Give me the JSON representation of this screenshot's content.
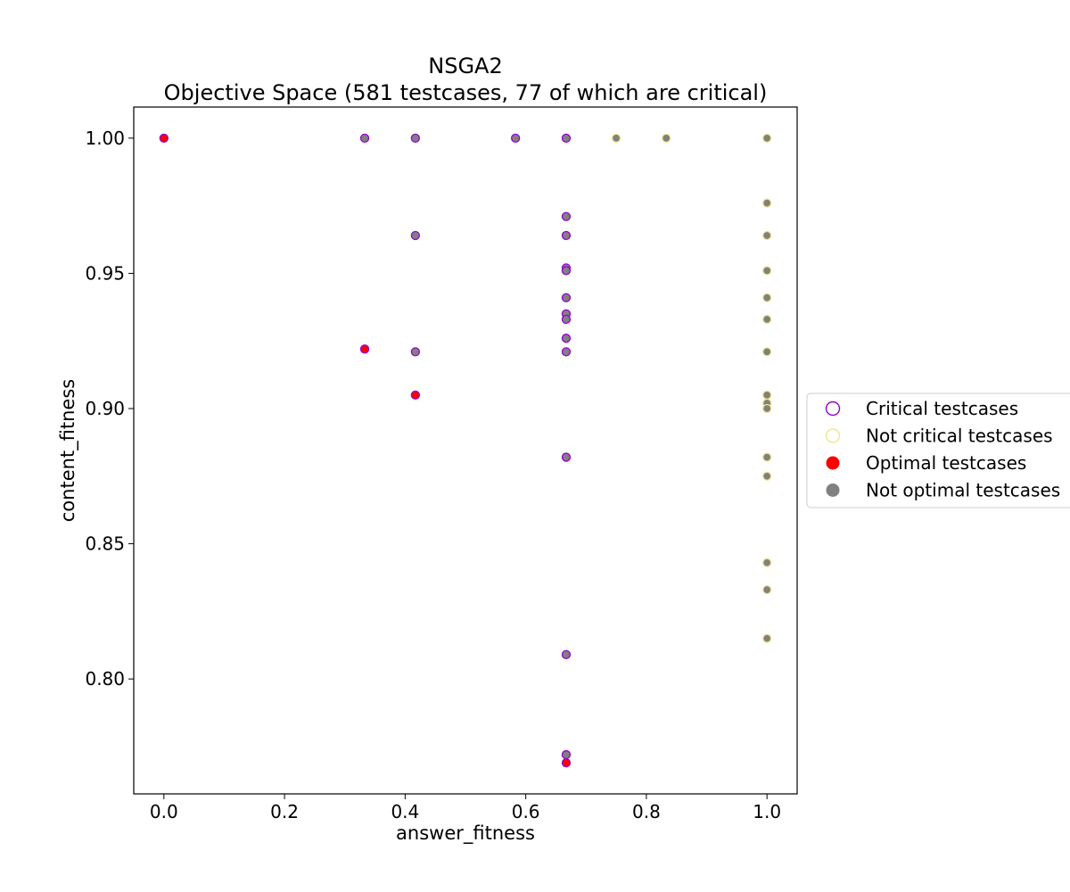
{
  "chart_data": {
    "type": "scatter",
    "title": "NSGA2",
    "subtitle": "Objective Space (581 testcases, 77 of which are critical)",
    "xlabel": "answer_fitness",
    "ylabel": "content_fitness",
    "xlim": [
      -0.05,
      1.05
    ],
    "ylim": [
      0.7575,
      1.0115
    ],
    "xticks": [
      0.0,
      0.2,
      0.4,
      0.6,
      0.8,
      1.0
    ],
    "xtick_labels": [
      "0.0",
      "0.2",
      "0.4",
      "0.6",
      "0.8",
      "1.0"
    ],
    "yticks": [
      0.8,
      0.85,
      0.9,
      0.95,
      1.0
    ],
    "ytick_labels": [
      "0.80",
      "0.85",
      "0.90",
      "0.95",
      "1.00"
    ],
    "grid": false,
    "legend_position": "right",
    "legend": [
      {
        "label": "Critical testcases",
        "marker": "hollow",
        "color": "#9400d3"
      },
      {
        "label": "Not critical testcases",
        "marker": "hollow",
        "color": "#f0e68c"
      },
      {
        "label": "Optimal testcases",
        "marker": "filled",
        "color": "#ff0000"
      },
      {
        "label": "Not optimal testcases",
        "marker": "filled",
        "color": "#808080"
      }
    ],
    "colors": {
      "critical": "#9400d3",
      "not_critical": "#f0e68c",
      "optimal": "#ff0000",
      "not_optimal": "#808080"
    },
    "series": [
      {
        "name": "Not optimal testcases",
        "critical": true,
        "x": [
          0.333,
          0.417,
          0.417,
          0.417,
          0.583,
          0.667,
          0.667,
          0.667,
          0.667,
          0.667,
          0.667,
          0.667,
          0.667,
          0.667,
          0.667,
          0.667,
          0.667,
          0.667
        ],
        "y": [
          1.0,
          1.0,
          0.964,
          0.921,
          1.0,
          1.0,
          0.971,
          0.964,
          0.952,
          0.951,
          0.941,
          0.935,
          0.933,
          0.926,
          0.921,
          0.882,
          0.809,
          0.772
        ]
      },
      {
        "name": "Not optimal testcases",
        "critical": false,
        "x": [
          0.75,
          0.833,
          1.0,
          1.0,
          1.0,
          1.0,
          1.0,
          1.0,
          1.0,
          1.0,
          1.0,
          1.0,
          1.0,
          1.0,
          1.0,
          1.0,
          1.0
        ],
        "y": [
          1.0,
          1.0,
          1.0,
          0.976,
          0.964,
          0.951,
          0.941,
          0.933,
          0.921,
          0.905,
          0.902,
          0.9,
          0.882,
          0.875,
          0.843,
          0.833,
          0.815
        ]
      },
      {
        "name": "Optimal testcases",
        "critical": true,
        "x": [
          0.0,
          0.333,
          0.417,
          0.667
        ],
        "y": [
          1.0,
          0.922,
          0.905,
          0.769
        ]
      }
    ]
  }
}
